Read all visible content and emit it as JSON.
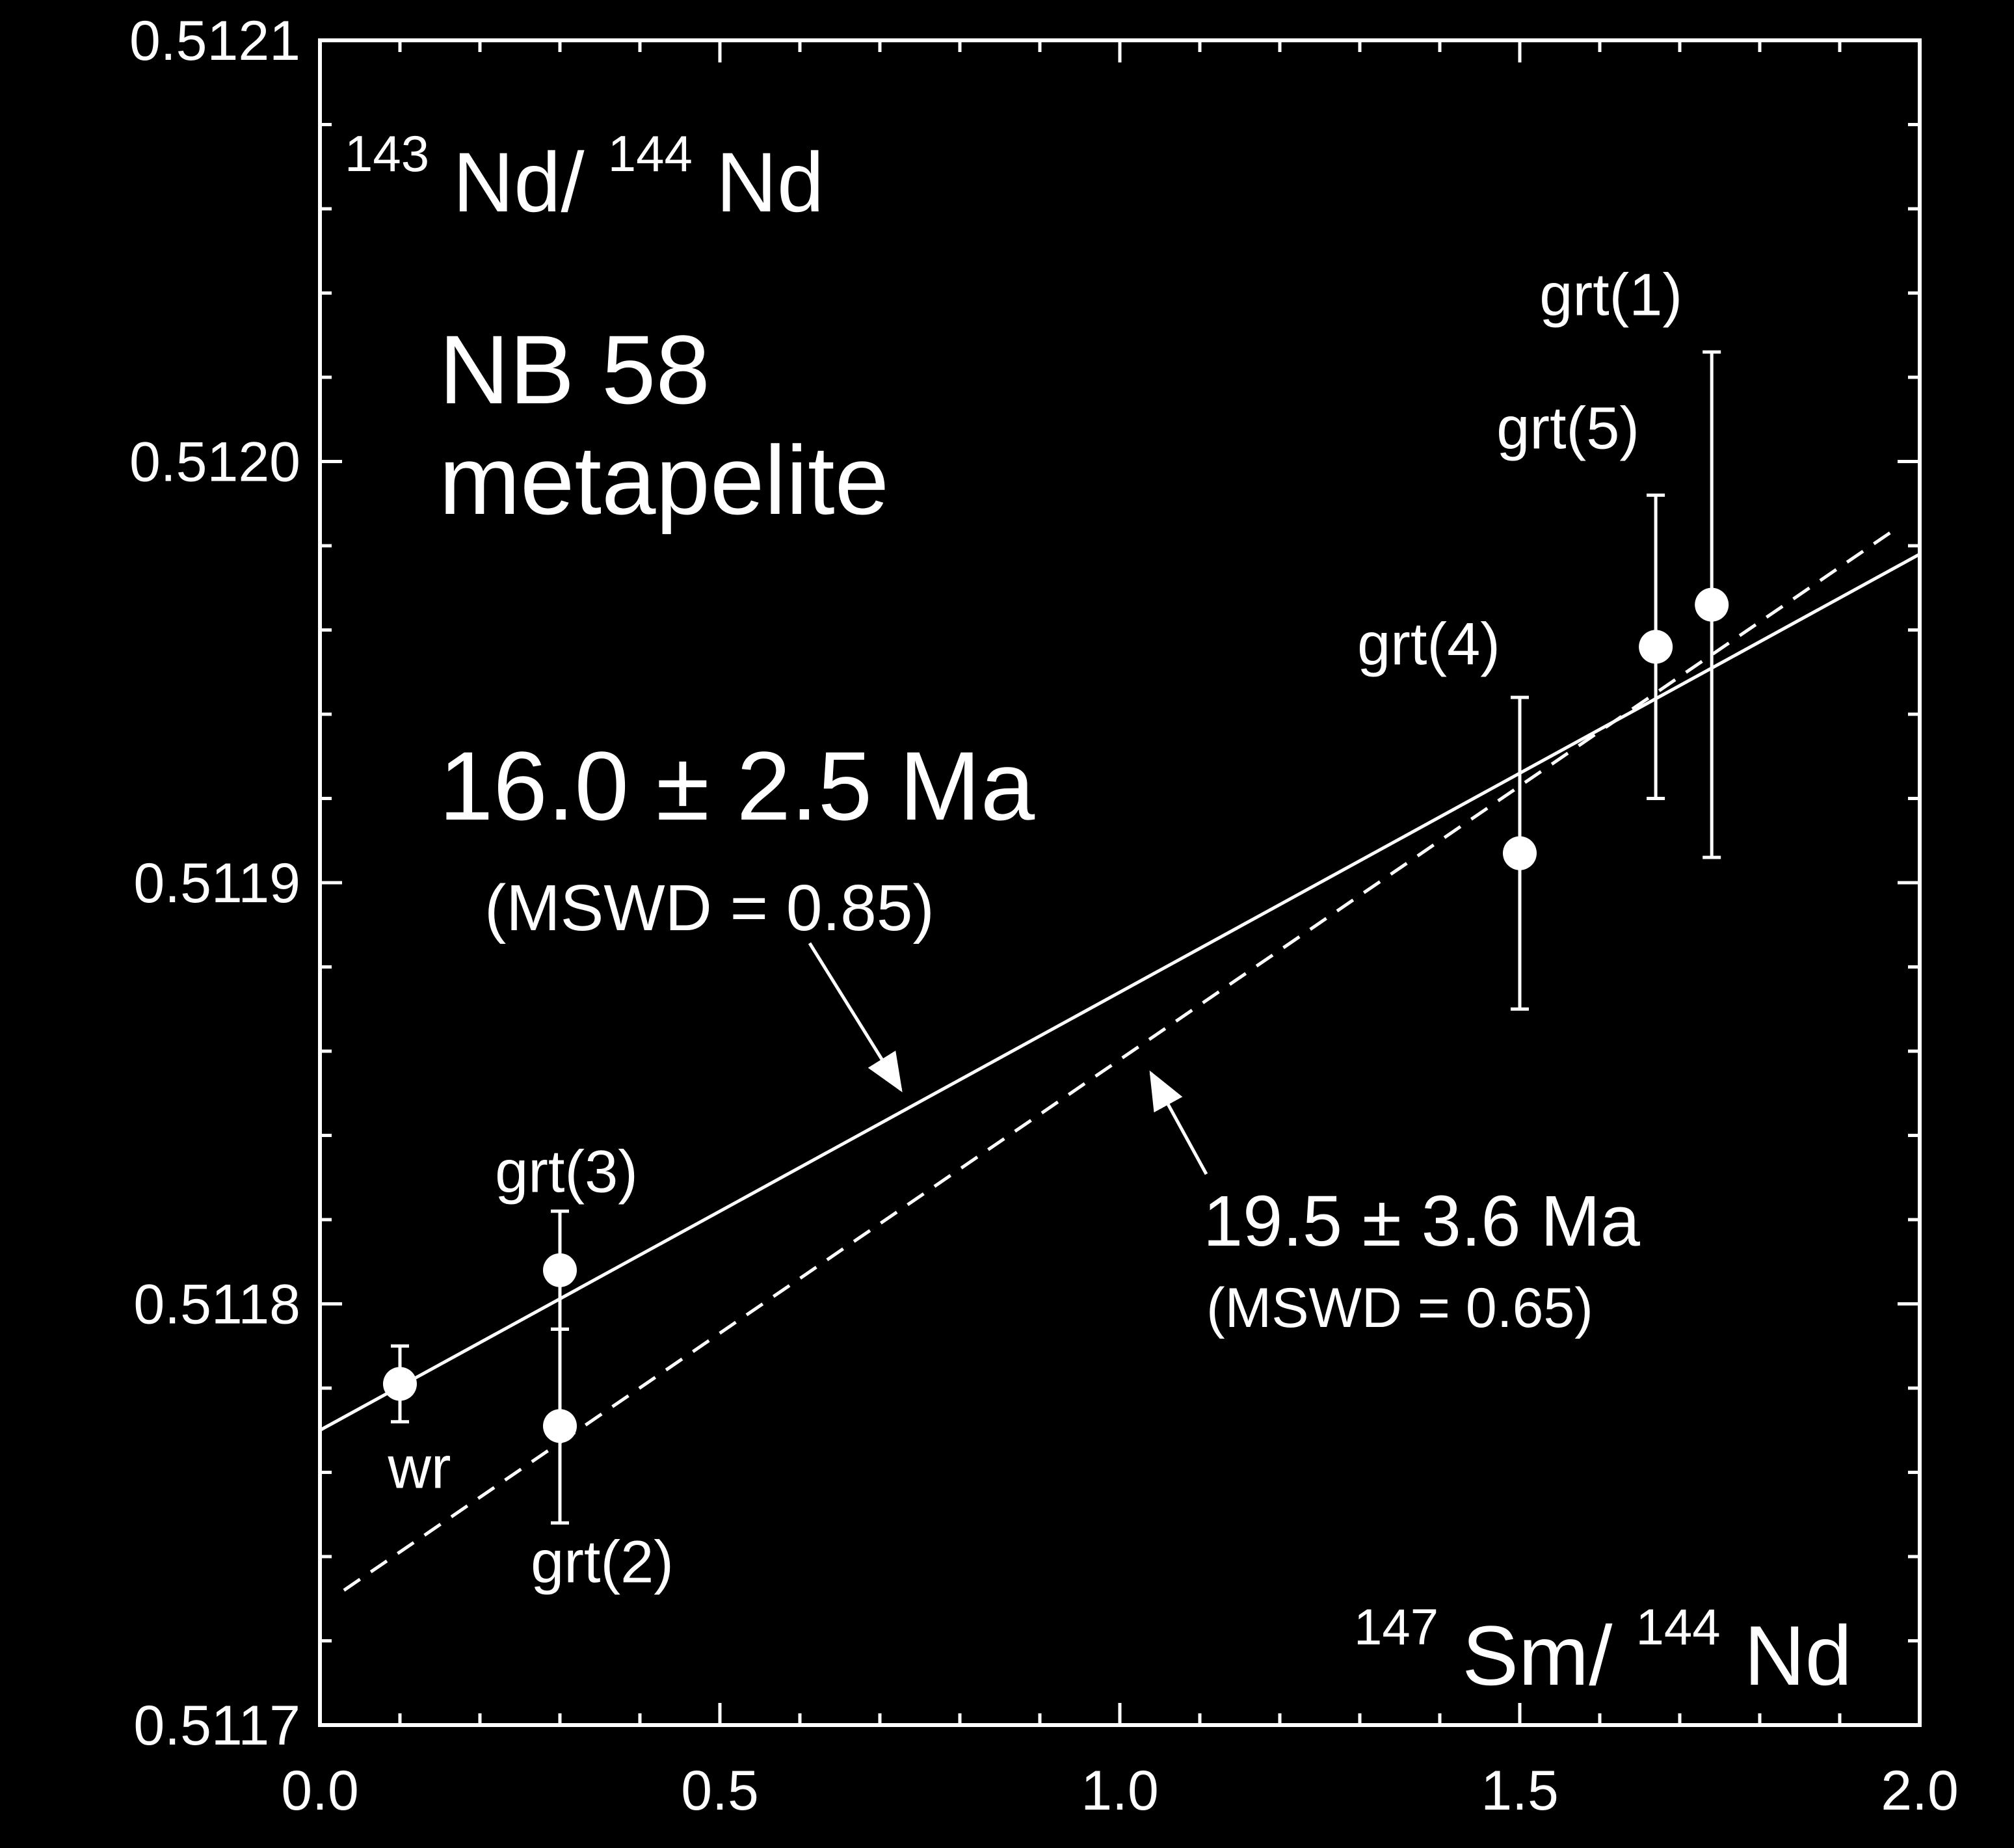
{
  "chart_data": {
    "type": "scatter",
    "xlim": [
      0.0,
      2.0
    ],
    "ylim": [
      0.5117,
      0.5121
    ],
    "x_ticks": [
      {
        "value": 0.0,
        "label": "0.0"
      },
      {
        "value": 0.5,
        "label": "0.5"
      },
      {
        "value": 1.0,
        "label": "1.0"
      },
      {
        "value": 1.5,
        "label": "1.5"
      },
      {
        "value": 2.0,
        "label": "2.0"
      }
    ],
    "y_ticks": [
      {
        "value": 0.5117,
        "label": "0.5117"
      },
      {
        "value": 0.5118,
        "label": "0.5118"
      },
      {
        "value": 0.5119,
        "label": "0.5119"
      },
      {
        "value": 0.512,
        "label": "0.5120"
      },
      {
        "value": 0.5121,
        "label": "0.5121"
      }
    ],
    "x_minor_step": 0.1,
    "y_minor_step": 2e-05,
    "xlabel": {
      "sup1": "147",
      "base1": "Sm/",
      "sup2": "144",
      "base2": "Nd"
    },
    "ylabel": {
      "sup1": "143",
      "base1": "Nd/",
      "sup2": "144",
      "base2": "Nd"
    },
    "sample": {
      "line1": "NB 58",
      "line2": "metapelite"
    },
    "points": [
      {
        "label": "wr",
        "x": 0.1,
        "y": 0.511781,
        "err": 9e-06
      },
      {
        "label": "grt(3)",
        "x": 0.3,
        "y": 0.511808,
        "err": 1.4e-05
      },
      {
        "label": "grt(2)",
        "x": 0.3,
        "y": 0.511771,
        "err": 2.3e-05
      },
      {
        "label": "grt(4)",
        "x": 1.5,
        "y": 0.511907,
        "err": 3.7e-05
      },
      {
        "label": "grt(5)",
        "x": 1.67,
        "y": 0.511956,
        "err": 3.6e-05
      },
      {
        "label": "grt(1)",
        "x": 1.74,
        "y": 0.511966,
        "err": 6e-05
      }
    ],
    "isochrons": [
      {
        "style": "solid",
        "age": "16.0",
        "pm": "±",
        "err": "2.5 Ma",
        "mswd": "(MSWD = 0.85)",
        "x": [
          0.0,
          2.0
        ],
        "y": [
          0.51177,
          0.511978
        ]
      },
      {
        "style": "dashed",
        "age": "19.5",
        "pm": "±",
        "err": "3.6 Ma",
        "mswd": "(MSWD = 0.65)",
        "x": [
          0.03,
          1.97
        ],
        "y": [
          0.511732,
          0.511984
        ]
      }
    ],
    "grid": false,
    "colors": {
      "background": "#000000",
      "foreground": "#ffffff"
    }
  }
}
